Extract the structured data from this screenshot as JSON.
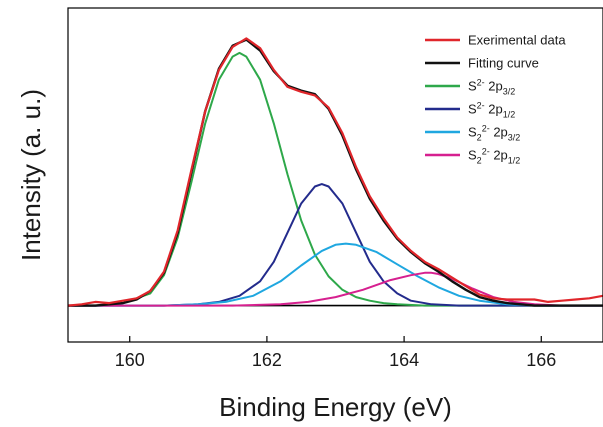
{
  "chart_data": {
    "type": "line",
    "xlabel": "Binding Energy (eV)",
    "ylabel": "Intensity (a. u.)",
    "xlim": [
      159.1,
      166.9
    ],
    "ylim": [
      -0.3,
      2.45
    ],
    "baseline": 0,
    "x_ticks": [
      "160",
      "162",
      "164",
      "166"
    ],
    "grid": false,
    "legend_position": "top-right",
    "series": [
      {
        "key": "exp",
        "name_main": "Exerimental data",
        "color": "#e0262b",
        "width": 2.2,
        "x": [
          159.1,
          159.3,
          159.5,
          159.7,
          159.9,
          160.1,
          160.3,
          160.5,
          160.7,
          160.9,
          161.1,
          161.3,
          161.5,
          161.7,
          161.9,
          162.1,
          162.3,
          162.5,
          162.7,
          162.9,
          163.1,
          163.3,
          163.5,
          163.7,
          163.9,
          164.1,
          164.3,
          164.5,
          164.7,
          164.9,
          165.1,
          165.3,
          165.5,
          165.7,
          165.9,
          166.1,
          166.3,
          166.5,
          166.7,
          166.9
        ],
        "y": [
          0.0,
          0.01,
          0.03,
          0.02,
          0.04,
          0.06,
          0.12,
          0.28,
          0.62,
          1.12,
          1.6,
          1.94,
          2.13,
          2.2,
          2.12,
          1.94,
          1.8,
          1.76,
          1.73,
          1.63,
          1.42,
          1.14,
          0.9,
          0.72,
          0.56,
          0.45,
          0.36,
          0.3,
          0.23,
          0.16,
          0.09,
          0.06,
          0.05,
          0.05,
          0.05,
          0.03,
          0.04,
          0.05,
          0.06,
          0.08
        ]
      },
      {
        "key": "fit",
        "name_main": "Fitting curve",
        "color": "#111111",
        "width": 2.4,
        "x": [
          159.1,
          159.3,
          159.5,
          159.7,
          159.9,
          160.1,
          160.3,
          160.5,
          160.7,
          160.9,
          161.1,
          161.3,
          161.5,
          161.7,
          161.9,
          162.1,
          162.3,
          162.5,
          162.7,
          162.9,
          163.1,
          163.3,
          163.5,
          163.7,
          163.9,
          164.1,
          164.3,
          164.5,
          164.7,
          164.9,
          165.1,
          165.3,
          165.5,
          165.7,
          165.9,
          166.1,
          166.3,
          166.5,
          166.7,
          166.9
        ],
        "y": [
          0.0,
          0.0,
          0.0,
          0.01,
          0.02,
          0.05,
          0.12,
          0.27,
          0.6,
          1.1,
          1.6,
          1.95,
          2.14,
          2.19,
          2.1,
          1.93,
          1.81,
          1.77,
          1.74,
          1.62,
          1.4,
          1.12,
          0.88,
          0.7,
          0.55,
          0.44,
          0.35,
          0.28,
          0.2,
          0.13,
          0.07,
          0.04,
          0.02,
          0.01,
          0.0,
          0.0,
          0.0,
          0.0,
          0.0,
          0.0
        ]
      },
      {
        "key": "s2_32",
        "name_main": "S",
        "name_sup": "2-",
        "name_tail": " 2p",
        "name_sub": "3/2",
        "color": "#2ea84a",
        "width": 2,
        "x": [
          159.1,
          159.5,
          159.9,
          160.3,
          160.5,
          160.7,
          160.9,
          161.1,
          161.3,
          161.5,
          161.6,
          161.7,
          161.9,
          162.1,
          162.3,
          162.5,
          162.7,
          162.9,
          163.1,
          163.3,
          163.5,
          163.7,
          163.9,
          164.3,
          166.9
        ],
        "y": [
          0.0,
          0.0,
          0.02,
          0.1,
          0.25,
          0.56,
          1.02,
          1.5,
          1.86,
          2.05,
          2.08,
          2.05,
          1.86,
          1.5,
          1.08,
          0.7,
          0.42,
          0.24,
          0.13,
          0.07,
          0.04,
          0.02,
          0.01,
          0.0,
          0.0
        ]
      },
      {
        "key": "s2_12",
        "name_main": "S",
        "name_sup": "2-",
        "name_tail": " 2p",
        "name_sub": "1/2",
        "color": "#232b8c",
        "width": 2,
        "x": [
          159.1,
          160.5,
          161.0,
          161.3,
          161.6,
          161.9,
          162.1,
          162.3,
          162.5,
          162.7,
          162.8,
          162.9,
          163.1,
          163.3,
          163.5,
          163.7,
          163.9,
          164.1,
          164.4,
          164.8,
          166.9
        ],
        "y": [
          0.0,
          0.0,
          0.01,
          0.03,
          0.08,
          0.2,
          0.36,
          0.6,
          0.84,
          0.98,
          1.0,
          0.98,
          0.84,
          0.6,
          0.36,
          0.2,
          0.1,
          0.04,
          0.01,
          0.0,
          0.0
        ]
      },
      {
        "key": "s22_32",
        "name_main": "S",
        "name_sub2": "2",
        "name_sup": "2-",
        "name_tail": " 2p",
        "name_sub": "3/2",
        "color": "#1fa7e0",
        "width": 2,
        "x": [
          159.1,
          160.5,
          161.0,
          161.4,
          161.8,
          162.2,
          162.5,
          162.8,
          163.0,
          163.15,
          163.3,
          163.6,
          163.9,
          164.2,
          164.5,
          164.8,
          165.1,
          165.5,
          166.0,
          166.9
        ],
        "y": [
          0.0,
          0.0,
          0.01,
          0.03,
          0.08,
          0.2,
          0.33,
          0.45,
          0.5,
          0.51,
          0.5,
          0.44,
          0.34,
          0.24,
          0.15,
          0.08,
          0.04,
          0.01,
          0.0,
          0.0
        ]
      },
      {
        "key": "s22_12",
        "name_main": "S",
        "name_sub2": "2",
        "name_sup": "2-",
        "name_tail": " 2p",
        "name_sub": "1/2",
        "color": "#d6208f",
        "width": 2,
        "x": [
          159.1,
          161.5,
          162.2,
          162.6,
          163.0,
          163.4,
          163.8,
          164.1,
          164.3,
          164.4,
          164.5,
          164.7,
          165.0,
          165.3,
          165.6,
          165.9,
          166.3,
          166.9
        ],
        "y": [
          0.0,
          0.0,
          0.01,
          0.03,
          0.07,
          0.13,
          0.21,
          0.25,
          0.27,
          0.27,
          0.26,
          0.22,
          0.14,
          0.07,
          0.03,
          0.01,
          0.0,
          0.0
        ]
      }
    ]
  }
}
